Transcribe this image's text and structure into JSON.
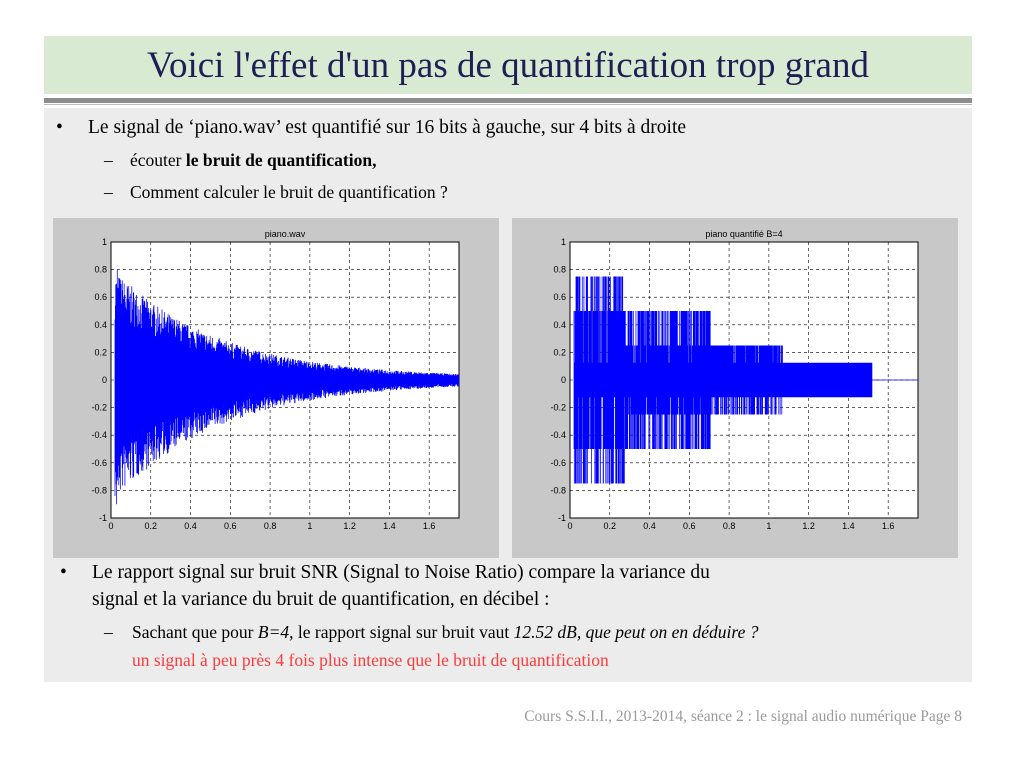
{
  "slide": {
    "title": "Voici l'effet d'un pas de quantification trop grand",
    "bullet1": "Le signal de ‘piano.wav’ est quantifié sur 16 bits à gauche, sur 4 bits à droite",
    "sub1_prefix": "écouter ",
    "sub1_bold": "le bruit de quantification,",
    "sub2": "Comment calculer le bruit de quantification ?",
    "bullet2_line1": "Le rapport signal sur bruit SNR (Signal to Noise Ratio) compare la variance du",
    "bullet2_line2": "signal et la variance du bruit de quantification, en décibel :",
    "sub3_prefix": "Sachant que pour ",
    "sub3_b": "B=4",
    "sub3_mid": ",  le rapport signal sur bruit vaut ",
    "sub3_italic": "12.52 dB, que peut on en déduire ?",
    "sub3_answer": "un signal à peu près 4 fois plus intense que le bruit de quantification",
    "bullet_char": "•",
    "dash_char": "–",
    "footer": "Cours S.S.I.I., 2013-2014, séance 2 : le signal audio numérique    Page 8"
  },
  "colors": {
    "signal": "#0000ff",
    "title_bg": "#d9ead3",
    "answer": "#ff3b3b"
  },
  "chart_data": [
    {
      "type": "line",
      "title": "piano.wav",
      "xlim": [
        0,
        1.75
      ],
      "ylim": [
        -1,
        1
      ],
      "x_ticks": [
        "0",
        "0.2",
        "0.4",
        "0.6",
        "0.8",
        "1",
        "1.2",
        "1.4",
        "1.6"
      ],
      "y_ticks": [
        "1",
        "0.8",
        "0.6",
        "0.4",
        "0.2",
        "0",
        "-0.2",
        "-0.4",
        "-0.6",
        "-0.8",
        "-1"
      ],
      "grid": true,
      "series": [
        {
          "x_start": 0.02,
          "x_end": 1.75,
          "peak_amplitude": 0.8,
          "min_amplitude": -0.9,
          "envelope": "exponential decay"
        }
      ]
    },
    {
      "type": "line",
      "title": "piano quantifié B=4",
      "xlim": [
        0,
        1.75
      ],
      "ylim": [
        -1,
        1
      ],
      "x_ticks": [
        "0",
        "0.2",
        "0.4",
        "0.6",
        "0.8",
        "1",
        "1.2",
        "1.4",
        "1.6"
      ],
      "y_ticks": [
        "1",
        "0.8",
        "0.6",
        "0.4",
        "0.2",
        "0",
        "-0.2",
        "-0.4",
        "-0.6",
        "-0.8",
        "-1"
      ],
      "grid": true,
      "series": [
        {
          "x_start": 0.02,
          "x_end": 1.52,
          "quantization_levels": [
            -0.75,
            -0.5,
            -0.25,
            -0.125,
            0,
            0.125,
            0.25,
            0.5,
            0.75
          ]
        }
      ]
    }
  ]
}
